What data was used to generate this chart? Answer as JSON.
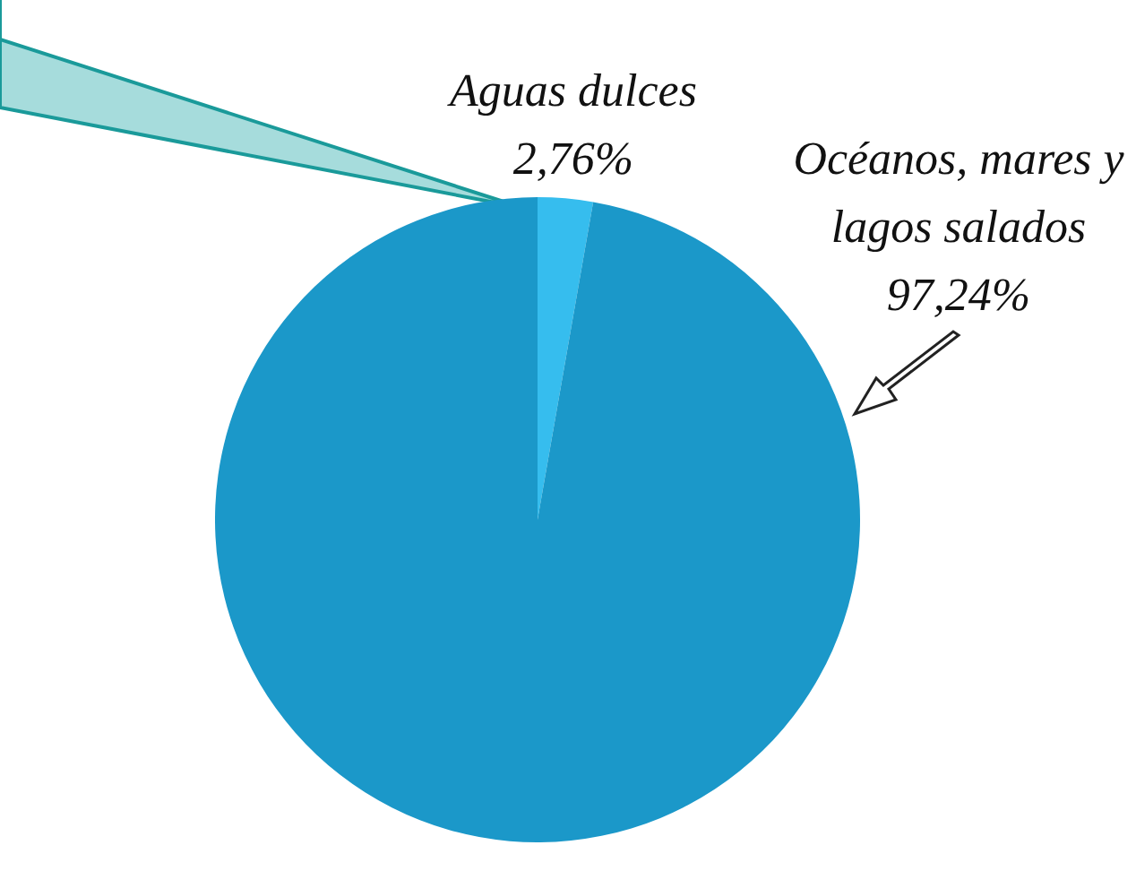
{
  "chart_data": {
    "type": "pie",
    "categories": [
      "Aguas dulces",
      "Océanos, mares y lagos salados"
    ],
    "values": [
      2.76,
      97.24
    ],
    "colors": [
      "#36bdee",
      "#1b98c9"
    ],
    "value_labels": [
      "2,76%",
      "97,24%"
    ],
    "legend": false
  }
}
